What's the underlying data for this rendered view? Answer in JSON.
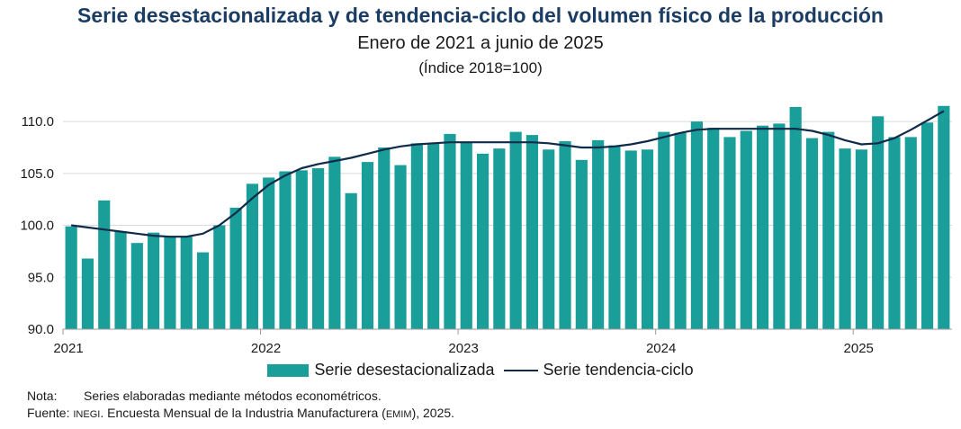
{
  "title": "Serie desestacionalizada y de tendencia-ciclo del volumen físico de la producción",
  "subtitle": "Enero de 2021 a junio de 2025",
  "unit_note": "(Índice 2018=100)",
  "colors": {
    "bars": "#1a9e9a",
    "line": "#0f2a4a",
    "grid": "#d9d9d9"
  },
  "legend": {
    "bars_label": "Serie desestacionalizada",
    "line_label": "Serie tendencia-ciclo"
  },
  "notes": {
    "nota_label": "Nota:",
    "nota_text": "Series elaboradas mediante métodos econométricos.",
    "fuente_label": "Fuente:",
    "fuente_org": "INEGI",
    "fuente_text_1": ". Encuesta Mensual de la Industria Manufacturera (",
    "fuente_abbr": "EMIM",
    "fuente_text_2": "), 2025."
  },
  "chart_data": {
    "type": "bar",
    "ylim": [
      90,
      112
    ],
    "yticks": [
      "90.0",
      "95.0",
      "100.0",
      "105.0",
      "110.0"
    ],
    "ytick_values": [
      90,
      95,
      100,
      105,
      110
    ],
    "xtick_labels": [
      "2021",
      "2022",
      "2023",
      "2024",
      "2025"
    ],
    "xtick_indices": [
      0,
      12,
      24,
      36,
      48
    ],
    "grid": true,
    "legend_position": "bottom",
    "series": [
      {
        "name": "Serie desestacionalizada",
        "kind": "bar",
        "values": [
          99.9,
          96.8,
          102.4,
          99.4,
          98.3,
          99.3,
          98.9,
          98.9,
          97.4,
          100.0,
          101.7,
          104.0,
          104.6,
          105.2,
          105.3,
          105.5,
          106.6,
          103.1,
          106.1,
          107.5,
          105.8,
          107.9,
          107.9,
          108.8,
          108.0,
          106.9,
          107.4,
          109.0,
          108.7,
          107.3,
          108.1,
          106.3,
          108.2,
          107.7,
          107.2,
          107.3,
          109.0,
          108.9,
          110.0,
          109.4,
          108.5,
          109.1,
          109.6,
          109.8,
          111.4,
          108.4,
          109.0,
          107.4,
          107.3,
          110.5,
          108.5,
          108.5,
          109.9,
          111.5
        ]
      },
      {
        "name": "Serie tendencia-ciclo",
        "kind": "line",
        "values": [
          100.0,
          99.8,
          99.6,
          99.4,
          99.2,
          99.0,
          98.9,
          98.9,
          99.2,
          100.0,
          101.2,
          102.6,
          103.9,
          104.8,
          105.5,
          105.9,
          106.2,
          106.5,
          106.9,
          107.3,
          107.6,
          107.8,
          107.9,
          108.0,
          108.0,
          108.0,
          108.0,
          108.0,
          108.0,
          107.9,
          107.7,
          107.5,
          107.5,
          107.6,
          107.8,
          108.1,
          108.5,
          108.9,
          109.2,
          109.3,
          109.3,
          109.3,
          109.3,
          109.3,
          109.3,
          109.1,
          108.7,
          108.2,
          107.8,
          107.9,
          108.4,
          109.2,
          110.1,
          111.0
        ]
      }
    ]
  }
}
